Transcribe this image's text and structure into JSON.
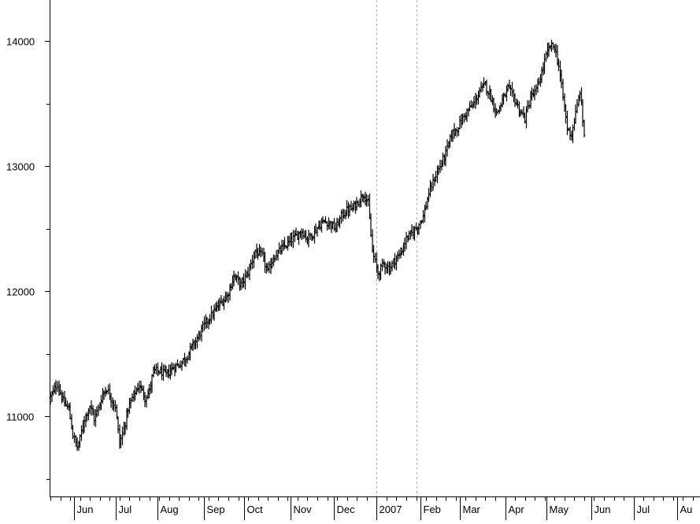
{
  "chart_data": {
    "type": "ohlc",
    "y_ticks": [
      11000,
      12000,
      13000,
      14000
    ],
    "y_tick_labels": [
      "11000",
      "12000",
      "13000",
      "14000"
    ],
    "ylim": [
      10420,
      14350
    ],
    "x_range_days": [
      0,
      460
    ],
    "x_tick_labels": [
      "Jun",
      "Jul",
      "Aug",
      "Sep",
      "Oct",
      "Nov",
      "Dec",
      "2007",
      "Feb",
      "Mar",
      "Apr",
      "May",
      "Jun",
      "Jul",
      "Au"
    ],
    "x_tick_days": [
      17,
      46,
      76,
      109,
      137,
      170,
      201,
      231,
      262,
      290,
      322,
      351,
      383,
      413,
      444
    ],
    "year_separator_days": [
      231,
      259
    ],
    "grid": false,
    "series": [
      {
        "anchors": [
          [
            0,
            11150
          ],
          [
            5,
            11260
          ],
          [
            9,
            11120
          ],
          [
            13,
            11060
          ],
          [
            16,
            10850
          ],
          [
            19,
            10750
          ],
          [
            21,
            10820
          ],
          [
            24,
            10980
          ],
          [
            28,
            11080
          ],
          [
            31,
            10980
          ],
          [
            34,
            11060
          ],
          [
            37,
            11180
          ],
          [
            40,
            11220
          ],
          [
            44,
            11120
          ],
          [
            46,
            11080
          ],
          [
            49,
            10780
          ],
          [
            52,
            10900
          ],
          [
            55,
            11060
          ],
          [
            59,
            11170
          ],
          [
            63,
            11250
          ],
          [
            67,
            11150
          ],
          [
            70,
            11200
          ],
          [
            73,
            11360
          ],
          [
            77,
            11360
          ],
          [
            82,
            11330
          ],
          [
            87,
            11390
          ],
          [
            92,
            11420
          ],
          [
            96,
            11470
          ],
          [
            100,
            11550
          ],
          [
            104,
            11620
          ],
          [
            110,
            11750
          ],
          [
            115,
            11820
          ],
          [
            120,
            11900
          ],
          [
            125,
            11960
          ],
          [
            130,
            12120
          ],
          [
            135,
            12050
          ],
          [
            140,
            12150
          ],
          [
            145,
            12320
          ],
          [
            150,
            12280
          ],
          [
            154,
            12150
          ],
          [
            158,
            12270
          ],
          [
            163,
            12330
          ],
          [
            168,
            12380
          ],
          [
            173,
            12430
          ],
          [
            178,
            12480
          ],
          [
            182,
            12420
          ],
          [
            186,
            12460
          ],
          [
            190,
            12520
          ],
          [
            194,
            12560
          ],
          [
            198,
            12540
          ],
          [
            202,
            12500
          ],
          [
            206,
            12600
          ],
          [
            210,
            12650
          ],
          [
            214,
            12660
          ],
          [
            218,
            12720
          ],
          [
            222,
            12780
          ],
          [
            225,
            12700
          ],
          [
            228,
            12320
          ],
          [
            232,
            12140
          ],
          [
            236,
            12220
          ],
          [
            240,
            12180
          ],
          [
            244,
            12250
          ],
          [
            248,
            12300
          ],
          [
            252,
            12420
          ],
          [
            256,
            12460
          ],
          [
            260,
            12520
          ],
          [
            264,
            12600
          ],
          [
            268,
            12780
          ],
          [
            272,
            12900
          ],
          [
            276,
            13000
          ],
          [
            280,
            13100
          ],
          [
            284,
            13250
          ],
          [
            288,
            13300
          ],
          [
            292,
            13380
          ],
          [
            296,
            13450
          ],
          [
            300,
            13500
          ],
          [
            304,
            13600
          ],
          [
            308,
            13650
          ],
          [
            312,
            13550
          ],
          [
            316,
            13420
          ],
          [
            320,
            13520
          ],
          [
            324,
            13620
          ],
          [
            328,
            13550
          ],
          [
            332,
            13450
          ],
          [
            336,
            13380
          ],
          [
            340,
            13550
          ],
          [
            344,
            13600
          ],
          [
            348,
            13750
          ],
          [
            351,
            13880
          ],
          [
            354,
            13960
          ],
          [
            357,
            13950
          ],
          [
            360,
            13800
          ],
          [
            363,
            13550
          ],
          [
            366,
            13300
          ],
          [
            369,
            13250
          ],
          [
            372,
            13420
          ],
          [
            375,
            13600
          ],
          [
            378,
            13250
          ]
        ]
      }
    ]
  }
}
